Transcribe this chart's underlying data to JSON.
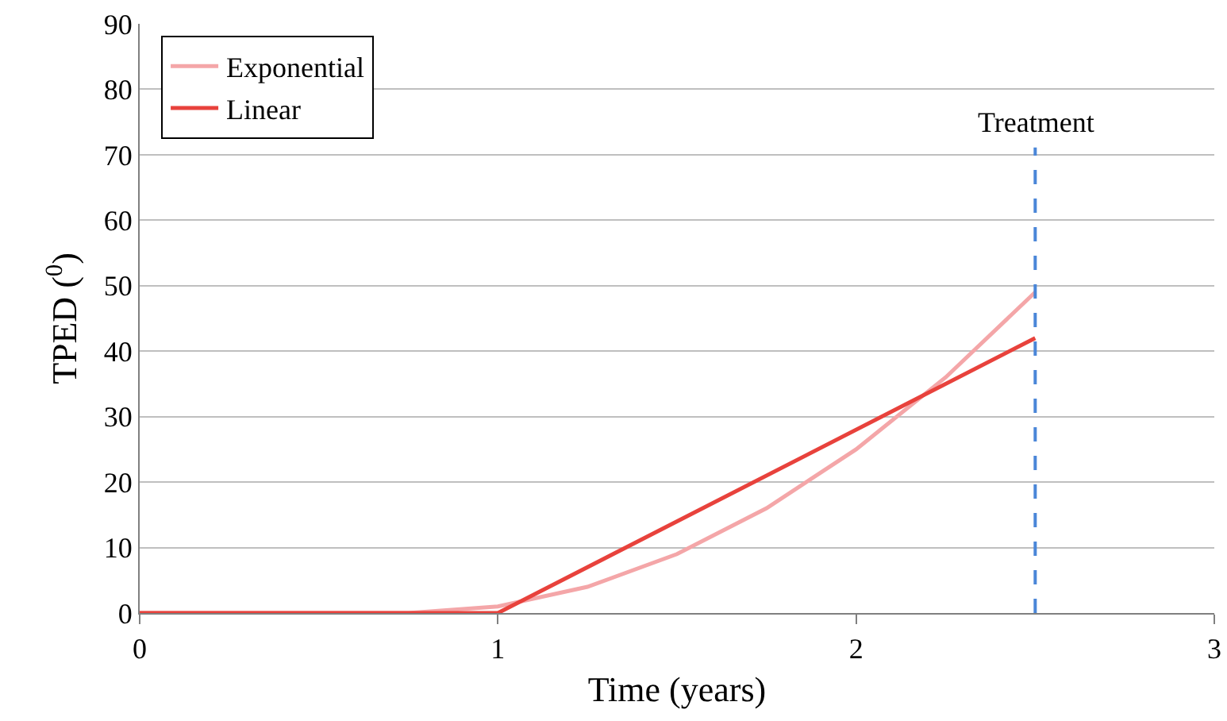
{
  "chart_data": {
    "type": "line",
    "xlabel": "Time (years)",
    "ylabel": "TPED ($^{0}$)",
    "x": [
      0,
      0.25,
      0.5,
      0.75,
      1,
      1.25,
      1.5,
      1.75,
      2,
      2.25,
      2.5
    ],
    "series": [
      {
        "name": "Exponential",
        "color": "#f4a6a8",
        "values": [
          0,
          0,
          0,
          0,
          1,
          4,
          9,
          16,
          25,
          36,
          49
        ]
      },
      {
        "name": "Linear",
        "color": "#e8423c",
        "x": [
          0,
          1,
          2.5
        ],
        "values": [
          0,
          0,
          42
        ]
      }
    ],
    "xlim": [
      0,
      3
    ],
    "xticks": [
      0,
      1,
      2,
      3
    ],
    "ylim": [
      0,
      90
    ],
    "yticks": [
      0,
      10,
      20,
      30,
      40,
      50,
      60,
      70,
      80,
      90
    ],
    "ref_lines": [
      {
        "axis": "x",
        "value": 2.5,
        "label": "Treatment",
        "color": "#4a86d8",
        "line_style": "dashed"
      }
    ],
    "grid": "y",
    "legend": "top left",
    "marker": "none",
    "line_style": "solid"
  }
}
